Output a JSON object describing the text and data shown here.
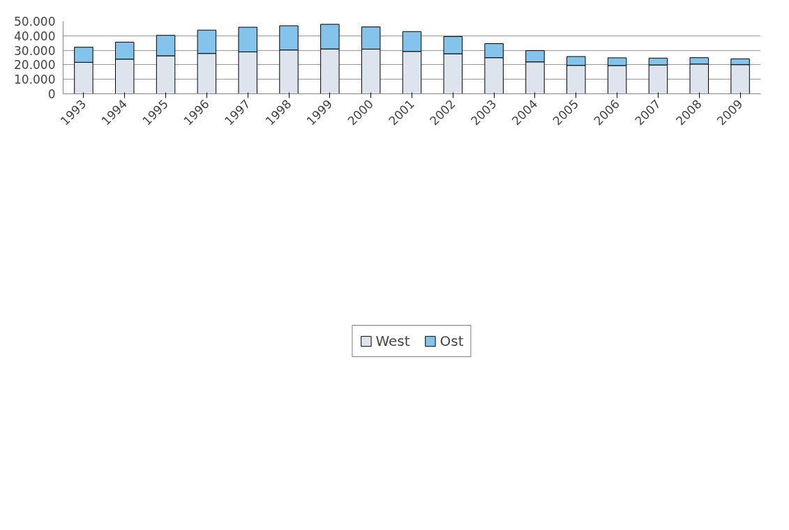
{
  "chart_data": {
    "type": "bar",
    "stacked": true,
    "categories": [
      "1993",
      "1994",
      "1995",
      "1996",
      "1997",
      "1998",
      "1999",
      "2000",
      "2001",
      "2002",
      "2003",
      "2004",
      "2005",
      "2006",
      "2007",
      "2008",
      "2009"
    ],
    "series": [
      {
        "name": "West",
        "color": "#dde4ee",
        "values": [
          21700,
          23900,
          26200,
          27800,
          28900,
          30200,
          30900,
          30800,
          29200,
          27600,
          24900,
          22000,
          19600,
          19500,
          19900,
          20500,
          20100
        ]
      },
      {
        "name": "Ost",
        "color": "#83c3ec",
        "values": [
          10400,
          11700,
          14100,
          16100,
          17000,
          16700,
          17000,
          15300,
          13700,
          11900,
          9700,
          7800,
          6100,
          5300,
          4700,
          4400,
          4000
        ]
      }
    ],
    "ylim": [
      0,
      50000
    ],
    "yticks": [
      {
        "value": 0,
        "label": "0"
      },
      {
        "value": 10000,
        "label": "10.000"
      },
      {
        "value": 20000,
        "label": "20.000"
      },
      {
        "value": 30000,
        "label": "30.000"
      },
      {
        "value": 40000,
        "label": "40.000"
      },
      {
        "value": 50000,
        "label": "50.000"
      }
    ],
    "grid": "y",
    "legend": "bottom"
  }
}
